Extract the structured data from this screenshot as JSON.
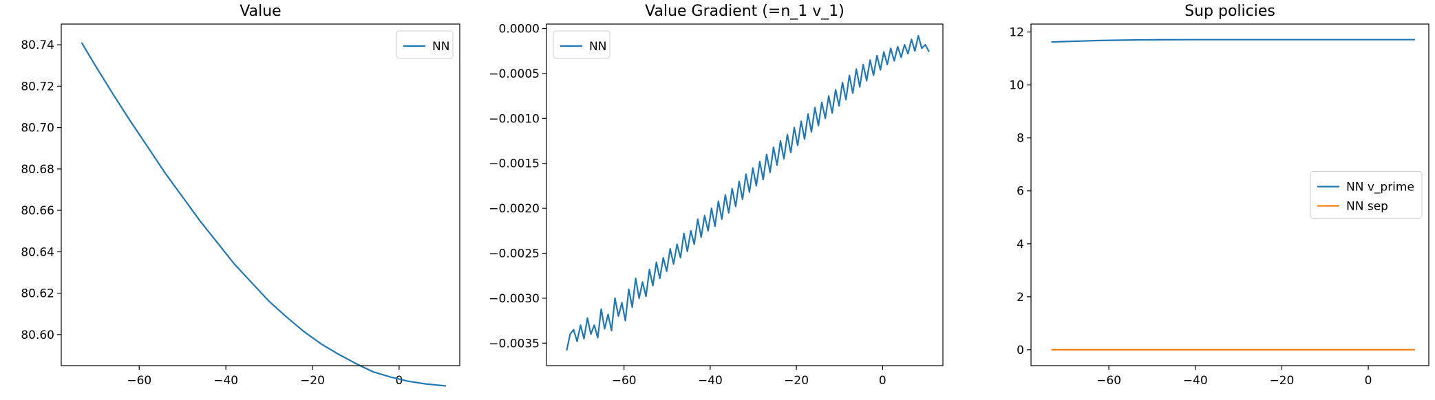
{
  "chart_data": [
    {
      "type": "line",
      "title": "Value",
      "xlabel": "",
      "ylabel": "",
      "xlim": [
        -78,
        14
      ],
      "ylim": [
        80.585,
        80.75
      ],
      "xticks": [
        -60,
        -40,
        -20,
        0
      ],
      "xtick_labels": [
        "−60",
        "−40",
        "−20",
        "0"
      ],
      "yticks": [
        80.6,
        80.62,
        80.64,
        80.66,
        80.68,
        80.7,
        80.72,
        80.74
      ],
      "ytick_labels": [
        "80.60",
        "80.62",
        "80.64",
        "80.66",
        "80.68",
        "80.70",
        "80.72",
        "80.74"
      ],
      "legend_position": "upper right",
      "series": [
        {
          "name": "NN",
          "color": "#1f77b4",
          "x": [
            -73.3,
            -70,
            -66,
            -62,
            -58,
            -54,
            -50,
            -46,
            -42,
            -38,
            -34,
            -30,
            -26,
            -22,
            -18,
            -14,
            -10,
            -6,
            -2,
            2,
            6,
            10.8
          ],
          "y": [
            80.741,
            80.7295,
            80.716,
            80.703,
            80.6905,
            80.678,
            80.6665,
            80.655,
            80.6445,
            80.634,
            80.625,
            80.616,
            80.6085,
            80.6015,
            80.5955,
            80.5905,
            80.586,
            80.582,
            80.5795,
            80.5775,
            80.5762,
            80.5752
          ]
        }
      ]
    },
    {
      "type": "line",
      "title": "Value Gradient (=n_1 v_1)",
      "xlabel": "",
      "ylabel": "",
      "xlim": [
        -78,
        14
      ],
      "ylim": [
        -0.00375,
        5e-05
      ],
      "xticks": [
        -60,
        -40,
        -20,
        0
      ],
      "xtick_labels": [
        "−60",
        "−40",
        "−20",
        "0"
      ],
      "yticks": [
        0,
        -0.0005,
        -0.001,
        -0.0015,
        -0.002,
        -0.0025,
        -0.003,
        -0.0035
      ],
      "ytick_labels": [
        "0.0000",
        "−0.0005",
        "−0.0010",
        "−0.0015",
        "−0.0020",
        "−0.0025",
        "−0.0030",
        "−0.0035"
      ],
      "legend_position": "upper left",
      "series": [
        {
          "name": "NN",
          "color": "#1f77b4",
          "x": [
            -73.3,
            -72.5,
            -71.7,
            -70.9,
            -70.1,
            -69.3,
            -68.5,
            -67.7,
            -66.9,
            -66.1,
            -65.3,
            -64.5,
            -63.7,
            -62.9,
            -62.1,
            -61.3,
            -60.5,
            -59.7,
            -58.9,
            -58.1,
            -57.3,
            -56.5,
            -55.7,
            -54.9,
            -54.1,
            -53.3,
            -52.5,
            -51.7,
            -50.9,
            -50.1,
            -49.3,
            -48.5,
            -47.7,
            -46.9,
            -46.1,
            -45.3,
            -44.5,
            -43.7,
            -42.9,
            -42.1,
            -41.3,
            -40.5,
            -39.7,
            -38.9,
            -38.1,
            -37.3,
            -36.5,
            -35.7,
            -34.9,
            -34.1,
            -33.3,
            -32.5,
            -31.7,
            -30.9,
            -30.1,
            -29.3,
            -28.5,
            -27.7,
            -26.9,
            -26.1,
            -25.3,
            -24.5,
            -23.7,
            -22.9,
            -22.1,
            -21.3,
            -20.5,
            -19.7,
            -18.9,
            -18.1,
            -17.3,
            -16.5,
            -15.7,
            -14.9,
            -14.1,
            -13.3,
            -12.5,
            -11.7,
            -10.9,
            -10.1,
            -9.3,
            -8.5,
            -7.7,
            -6.9,
            -6.1,
            -5.3,
            -4.5,
            -3.7,
            -2.9,
            -2.1,
            -1.3,
            -0.5,
            0.3,
            1.1,
            1.9,
            2.7,
            3.5,
            4.3,
            5.1,
            5.9,
            6.7,
            7.5,
            8.3,
            9.1,
            9.9,
            10.8
          ],
          "y": [
            -0.00358,
            -0.0034,
            -0.00335,
            -0.00348,
            -0.0033,
            -0.00345,
            -0.00322,
            -0.0034,
            -0.0033,
            -0.00344,
            -0.00312,
            -0.00334,
            -0.00318,
            -0.00336,
            -0.003,
            -0.0032,
            -0.00305,
            -0.00325,
            -0.0029,
            -0.0031,
            -0.00278,
            -0.003,
            -0.00282,
            -0.00298,
            -0.00268,
            -0.00286,
            -0.0026,
            -0.00278,
            -0.00255,
            -0.0027,
            -0.00245,
            -0.00262,
            -0.0024,
            -0.00255,
            -0.00228,
            -0.00248,
            -0.00225,
            -0.0024,
            -0.00212,
            -0.00232,
            -0.00208,
            -0.00225,
            -0.002,
            -0.0022,
            -0.00192,
            -0.00212,
            -0.00185,
            -0.00205,
            -0.00178,
            -0.00198,
            -0.0017,
            -0.0019,
            -0.00162,
            -0.00182,
            -0.00155,
            -0.00175,
            -0.00148,
            -0.00168,
            -0.0014,
            -0.0016,
            -0.00132,
            -0.00152,
            -0.00125,
            -0.00145,
            -0.00118,
            -0.00138,
            -0.0011,
            -0.0013,
            -0.00103,
            -0.00123,
            -0.00095,
            -0.00115,
            -0.00088,
            -0.00108,
            -0.00082,
            -0.001,
            -0.00075,
            -0.00094,
            -0.00068,
            -0.00086,
            -0.0006,
            -0.00079,
            -0.00052,
            -0.00072,
            -0.00045,
            -0.00065,
            -0.0004,
            -0.00058,
            -0.00035,
            -0.00052,
            -0.0003,
            -0.00046,
            -0.00026,
            -0.0004,
            -0.00022,
            -0.00036,
            -0.0002,
            -0.00032,
            -0.00018,
            -0.00028,
            -0.00012,
            -0.00025,
            -8e-05,
            -0.00022,
            -0.00018,
            -0.00026
          ]
        }
      ]
    },
    {
      "type": "line",
      "title": "Sup policies",
      "xlabel": "",
      "ylabel": "",
      "xlim": [
        -78,
        14
      ],
      "ylim": [
        -0.6,
        12.3
      ],
      "xticks": [
        -60,
        -40,
        -20,
        0
      ],
      "xtick_labels": [
        "−60",
        "−40",
        "−20",
        "0"
      ],
      "yticks": [
        0,
        2,
        4,
        6,
        8,
        10,
        12
      ],
      "ytick_labels": [
        "0",
        "2",
        "4",
        "6",
        "8",
        "10",
        "12"
      ],
      "legend_position": "center right",
      "series": [
        {
          "name": "NN v_prime",
          "color": "#1f77b4",
          "x": [
            -73.3,
            -70,
            -66,
            -62,
            -58,
            -54,
            -50,
            -40,
            -30,
            -20,
            -10,
            0,
            10.8
          ],
          "y": [
            11.62,
            11.64,
            11.66,
            11.68,
            11.69,
            11.7,
            11.705,
            11.71,
            11.71,
            11.71,
            11.71,
            11.71,
            11.71
          ]
        },
        {
          "name": "NN sep",
          "color": "#ff7f0e",
          "x": [
            -73.3,
            10.8
          ],
          "y": [
            0.0,
            0.0
          ]
        }
      ]
    }
  ]
}
